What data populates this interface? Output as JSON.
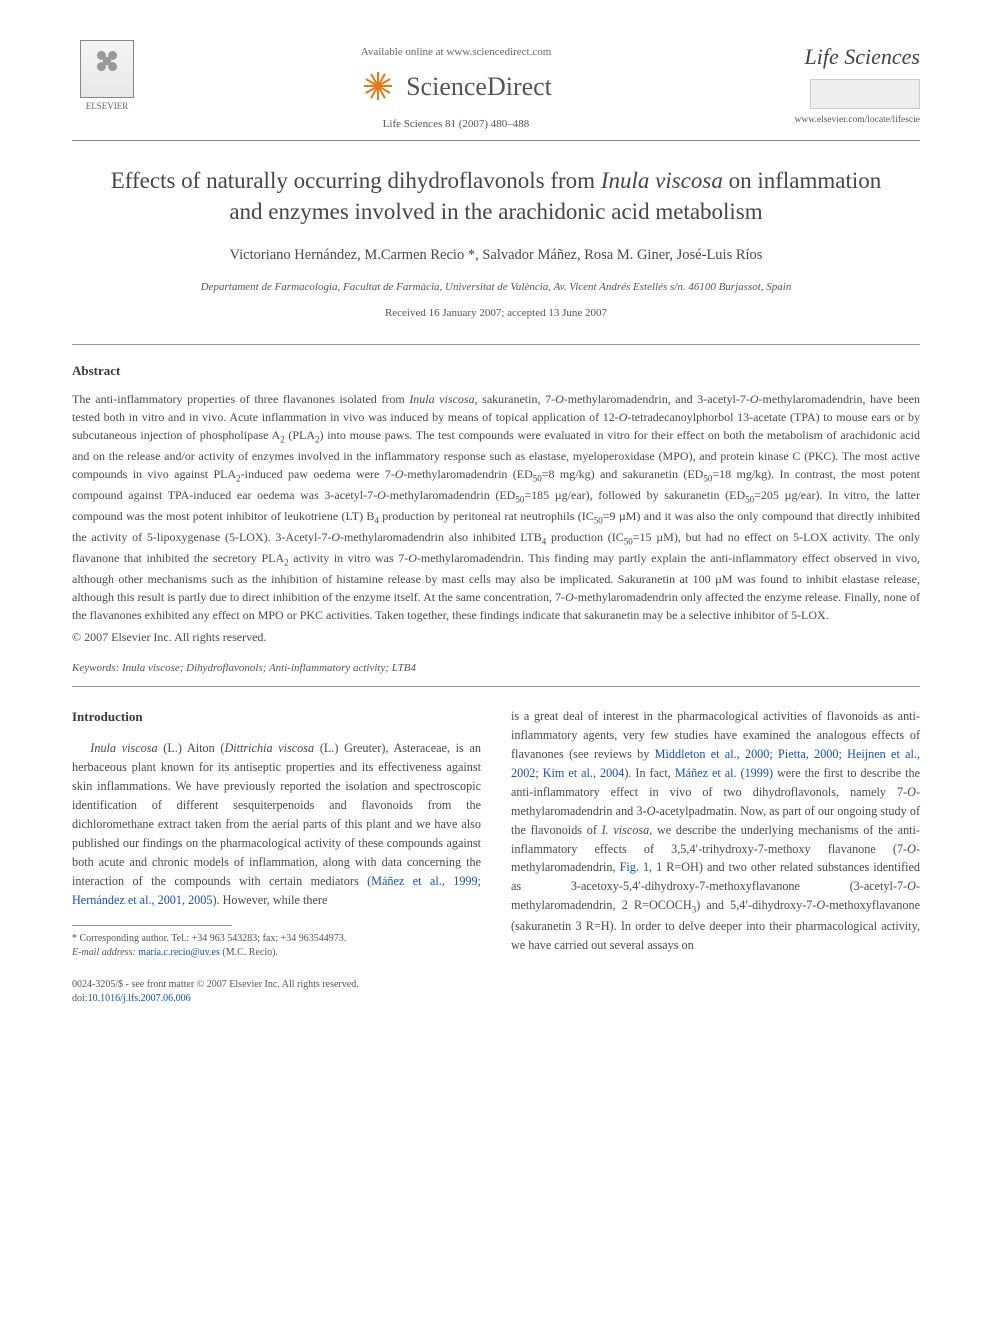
{
  "header": {
    "publisher_name": "ELSEVIER",
    "available_line": "Available online at www.sciencedirect.com",
    "brand": "ScienceDirect",
    "citation": "Life Sciences 81 (2007) 480–488",
    "journal_name": "Life Sciences",
    "journal_url": "www.elsevier.com/locate/lifescie",
    "colors": {
      "burst": "#e67a17",
      "text": "#4a4a4a",
      "link": "#1a4fb3",
      "rule": "#888888"
    }
  },
  "article": {
    "title_pre": "Effects of naturally occurring dihydroflavonols from ",
    "title_ital": "Inula viscosa",
    "title_post": " on inflammation and enzymes involved in the arachidonic acid metabolism",
    "authors": "Victoriano Hernández, M.Carmen Recio *, Salvador Máñez, Rosa M. Giner, José-Luis Ríos",
    "affiliation": "Departament de Farmacologia, Facultat de Farmàcia, Universitat de València, Av. Vicent Andrés Estellés s/n. 46100 Burjassot, Spain",
    "dates": "Received 16 January 2007; accepted 13 June 2007"
  },
  "abstract": {
    "heading": "Abstract",
    "body_html": "The anti-inflammatory properties of three flavanones isolated from <span class='ital'>Inula viscosa</span>, sakuranetin, 7-<span class='ital'>O</span>-methylaromadendrin, and 3-acetyl-7-<span class='ital'>O</span>-methylaromadendrin, have been tested both in vitro and in vivo. Acute inflammation in vivo was induced by means of topical application of 12-<span class='ital'>O</span>-tetradecanoylphorbol 13-acetate (TPA) to mouse ears or by subcutaneous injection of phospholipase A<sub>2</sub> (PLA<sub>2</sub>) into mouse paws. The test compounds were evaluated in vitro for their effect on both the metabolism of arachidonic acid and on the release and/or activity of enzymes involved in the inflammatory response such as elastase, myeloperoxidase (MPO), and protein kinase C (PKC). The most active compounds in vivo against PLA<sub>2</sub>-induced paw oedema were 7-<span class='ital'>O</span>-methylaromadendrin (ED<sub>50</sub>=8 mg/kg) and sakuranetin (ED<sub>50</sub>=18 mg/kg). In contrast, the most potent compound against TPA-induced ear oedema was 3-acetyl-7-<span class='ital'>O</span>-methylaromadendrin (ED<sub>50</sub>=185 µg/ear), followed by sakuranetin (ED<sub>50</sub>=205 µg/ear). In vitro, the latter compound was the most potent inhibitor of leukotriene (LT) B<sub>4</sub> production by peritoneal rat neutrophils (IC<sub>50</sub>=9 µM) and it was also the only compound that directly inhibited the activity of 5-lipoxygenase (5-LOX). 3-Acetyl-7-<span class='ital'>O</span>-methylaromadendrin also inhibited LTB<sub>4</sub> production (IC<sub>50</sub>=15 µM), but had no effect on 5-LOX activity. The only flavanone that inhibited the secretory PLA<sub>2</sub> activity in vitro was 7-<span class='ital'>O</span>-methylaromadendrin. This finding may partly explain the anti-inflammatory effect observed in vivo, although other mechanisms such as the inhibition of histamine release by mast cells may also be implicated. Sakuranetin at 100 µM was found to inhibit elastase release, although this result is partly due to direct inhibition of the enzyme itself. At the same concentration, 7-<span class='ital'>O</span>-methylaromadendrin only affected the enzyme release. Finally, none of the flavanones exhibited any effect on MPO or PKC activities. Taken together, these findings indicate that sakuranetin may be a selective inhibitor of 5-LOX.",
    "copyright": "© 2007 Elsevier Inc. All rights reserved."
  },
  "keywords": {
    "label": "Keywords:",
    "list": "Inula viscose; Dihydroflavonols; Anti-inflammatory activity; LTB4"
  },
  "body": {
    "intro_heading": "Introduction",
    "col1_html": "<span class='ital'>Inula viscosa</span> (L.) Aiton (<span class='ital'>Dittrichia viscosa</span> (L.) Greuter), Asteraceae, is an herbaceous plant known for its antiseptic properties and its effectiveness against skin inflammations. We have previously reported the isolation and spectroscopic identification of different sesquiterpenoids and flavonoids from the dichloromethane extract taken from the aerial parts of this plant and we have also published our findings on the pharmacological activity of these compounds against both acute and chronic models of inflammation, along with data concerning the interaction of the compounds with certain mediators (<span class='link'>Máñez et al., 1999; Hernández et al., 2001, 2005</span>). However, while there",
    "col2_html": "is a great deal of interest in the pharmacological activities of flavonoids as anti-inflammatory agents, very few studies have examined the analogous effects of flavanones (see reviews by <span class='link'>Middleton et al., 2000; Pietta, 2000; Heijnen et al., 2002; Kim et al., 2004</span>). In fact, <span class='link'>Máñez et al. (1999)</span> were the first to describe the anti-inflammatory effect in vivo of two dihydroflavonols, namely 7-<span class='ital'>O</span>-methylaromadendrin and 3-<span class='ital'>O</span>-acetylpadmatin. Now, as part of our ongoing study of the flavonoids of <span class='ital'>I. viscosa</span>, we describe the underlying mechanisms of the anti-inflammatory effects of 3,5,4′-trihydroxy-7-methoxy flavanone (7-<span class='ital'>O</span>-methylaromadendrin, <span class='link'>Fig. 1</span>, 1 R=OH) and two other related substances identified as 3-acetoxy-5,4′-dihydroxy-7-methoxyflavanone (3-acetyl-7-<span class='ital'>O</span>-methylaromadendrin, 2 R=OCOCH<sub>3</sub>) and 5,4′-dihydroxy-7-<span class='ital'>O</span>-methoxyflavanone (sakuranetin 3 R=H). In order to delve deeper into their pharmacological activity, we have carried out several assays on"
  },
  "footnote": {
    "corr": "* Corresponding author. Tel.: +34 963 543283; fax: +34 963544973.",
    "email_label": "E-mail address:",
    "email": "maria.c.recio@uv.es",
    "email_suffix": "(M.C. Recio)."
  },
  "footer": {
    "line1": "0024-3205/$ - see front matter © 2007 Elsevier Inc. All rights reserved.",
    "doi_label": "doi:",
    "doi": "10.1016/j.lfs.2007.06.006"
  }
}
